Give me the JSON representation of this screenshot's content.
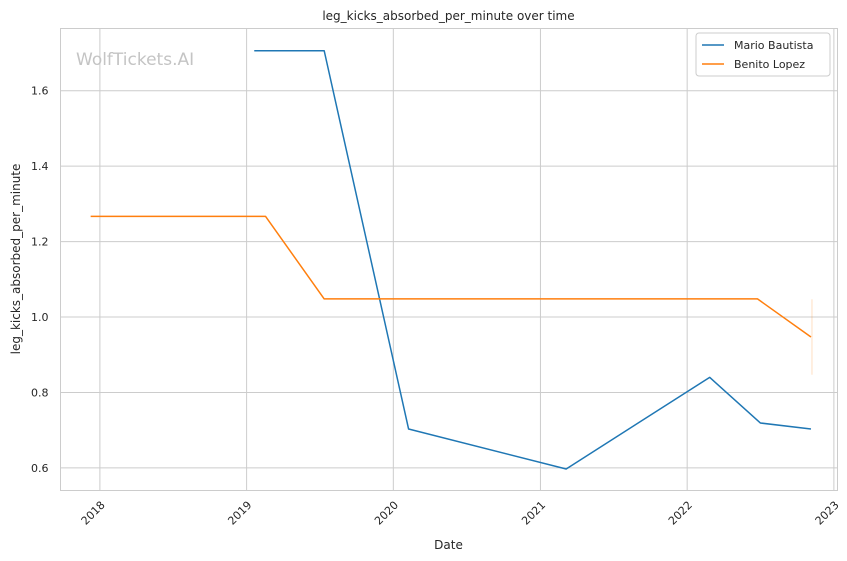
{
  "chart_data": {
    "type": "line",
    "title": "leg_kicks_absorbed_per_minute over time",
    "xlabel": "Date",
    "ylabel": "leg_kicks_absorbed_per_minute",
    "watermark": "WolfTickets.AI",
    "x_ticks": [
      "2018",
      "2019",
      "2020",
      "2021",
      "2022",
      "2023"
    ],
    "y_ticks": [
      "0.6",
      "0.8",
      "1.0",
      "1.2",
      "1.4",
      "1.6"
    ],
    "xlim": [
      "2017-09-25",
      "2023-01-10"
    ],
    "ylim": [
      0.54,
      1.765
    ],
    "grid": true,
    "legend_position": "top-right",
    "series": [
      {
        "name": "Mario Bautista",
        "color": "#1f77b4",
        "points": [
          {
            "x": "2019-01-20",
            "y": 1.706
          },
          {
            "x": "2019-07-13",
            "y": 1.706
          },
          {
            "x": "2020-02-08",
            "y": 0.703
          },
          {
            "x": "2021-03-06",
            "y": 0.597
          },
          {
            "x": "2022-02-26",
            "y": 0.84
          },
          {
            "x": "2022-07-02",
            "y": 0.719
          },
          {
            "x": "2022-11-05",
            "y": 0.703
          }
        ]
      },
      {
        "name": "Benito Lopez",
        "color": "#ff7f0e",
        "points": [
          {
            "x": "2017-12-09",
            "y": 1.267
          },
          {
            "x": "2019-02-17",
            "y": 1.267
          },
          {
            "x": "2019-07-13",
            "y": 1.048
          },
          {
            "x": "2022-06-25",
            "y": 1.048
          },
          {
            "x": "2022-11-05",
            "y": 0.947
          }
        ]
      }
    ]
  }
}
